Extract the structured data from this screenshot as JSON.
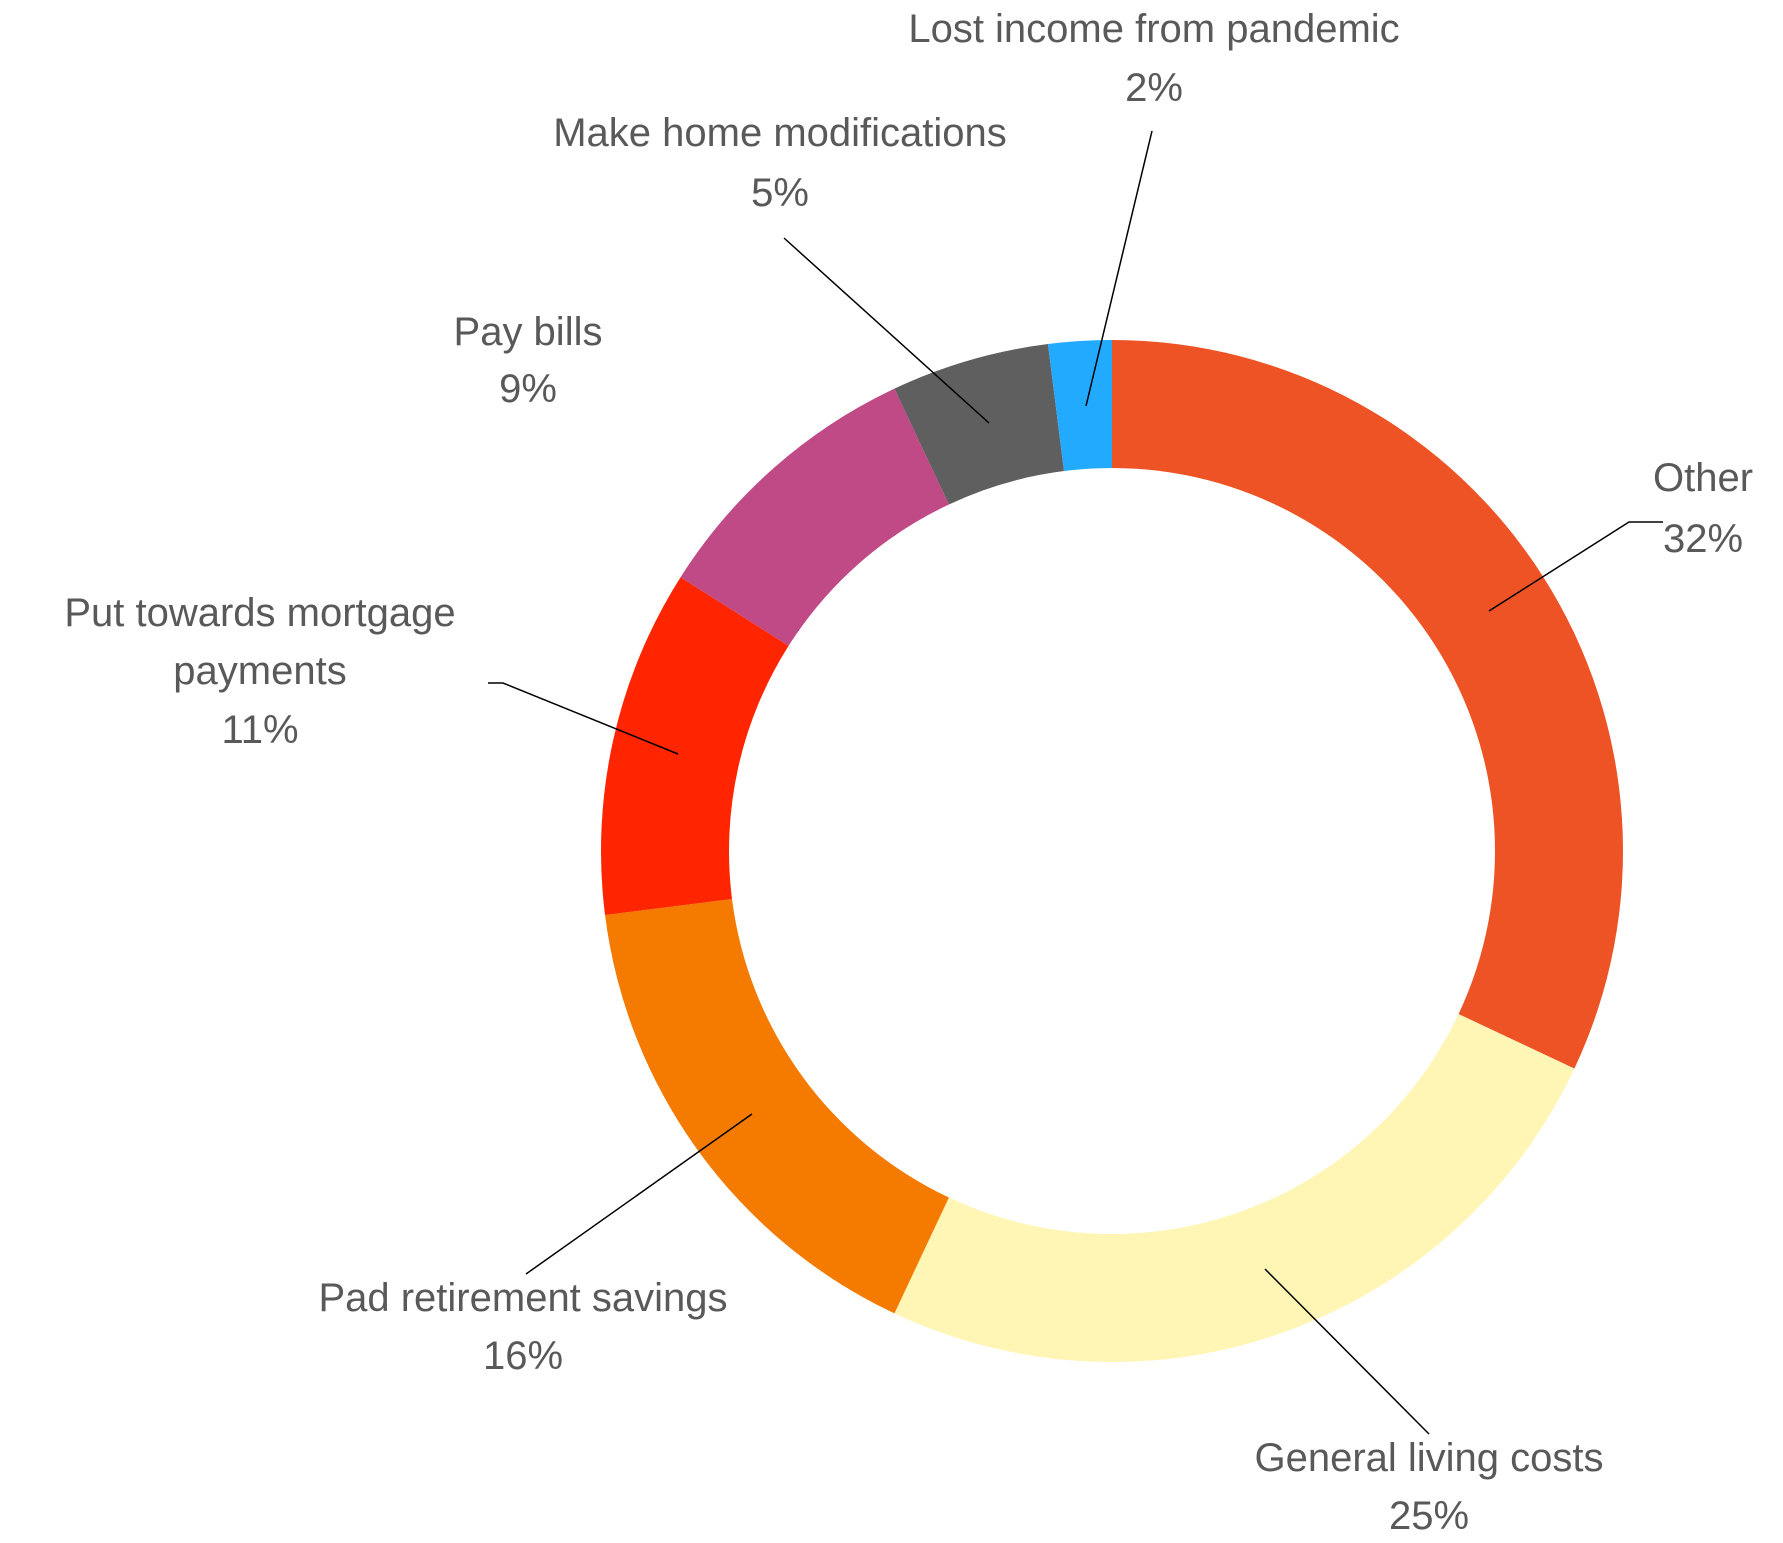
{
  "chart_data": {
    "type": "donut",
    "categories": [
      "Other",
      "General living costs",
      "Pad retirement savings",
      "Put towards mortgage payments",
      "Pay bills",
      "Make home modifications",
      "Lost income from pandemic"
    ],
    "values": [
      32,
      25,
      16,
      11,
      9,
      5,
      2
    ],
    "value_labels": [
      "32%",
      "25%",
      "16%",
      "11%",
      "9%",
      "5%",
      "2%"
    ],
    "colors": [
      "#ee5325",
      "#fff5b5",
      "#f47b00",
      "#ff2500",
      "#c04a86",
      "#5f5f5f",
      "#22aaff"
    ]
  }
}
